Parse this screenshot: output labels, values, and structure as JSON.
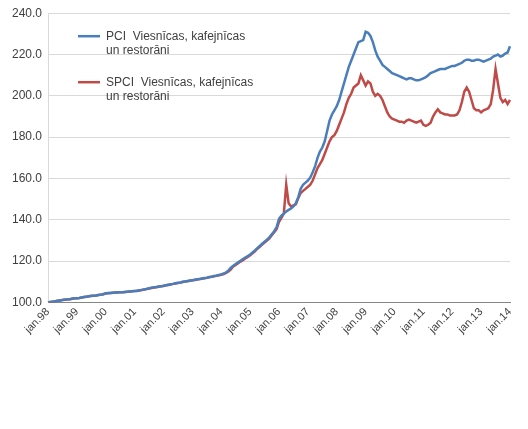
{
  "chart_data": {
    "type": "line",
    "categories": [
      "jan.98",
      null,
      null,
      null,
      null,
      null,
      null,
      null,
      null,
      null,
      null,
      null,
      "jan.99",
      null,
      null,
      null,
      null,
      null,
      null,
      null,
      null,
      null,
      null,
      null,
      "jan.00",
      null,
      null,
      null,
      null,
      null,
      null,
      null,
      null,
      null,
      null,
      null,
      "jan.01",
      null,
      null,
      null,
      null,
      null,
      null,
      null,
      null,
      null,
      null,
      null,
      "jan.02",
      null,
      null,
      null,
      null,
      null,
      null,
      null,
      null,
      null,
      null,
      null,
      "jan.03",
      null,
      null,
      null,
      null,
      null,
      null,
      null,
      null,
      null,
      null,
      null,
      "jan.04",
      null,
      null,
      null,
      null,
      null,
      null,
      null,
      null,
      null,
      null,
      null,
      "jan.05",
      null,
      null,
      null,
      null,
      null,
      null,
      null,
      null,
      null,
      null,
      null,
      "jan.06",
      null,
      null,
      null,
      null,
      null,
      null,
      null,
      null,
      null,
      null,
      null,
      "jan.07",
      null,
      null,
      null,
      null,
      null,
      null,
      null,
      null,
      null,
      null,
      null,
      "jan.08",
      null,
      null,
      null,
      null,
      null,
      null,
      null,
      null,
      null,
      null,
      null,
      "jan.09",
      null,
      null,
      null,
      null,
      null,
      null,
      null,
      null,
      null,
      null,
      null,
      "jan.10",
      null,
      null,
      null,
      null,
      null,
      null,
      null,
      null,
      null,
      null,
      null,
      "jan.11",
      null,
      null,
      null,
      null,
      null,
      null,
      null,
      null,
      null,
      null,
      null,
      "jan.12",
      null,
      null,
      null,
      null,
      null,
      null,
      null,
      null,
      null,
      null,
      null,
      "jan.13",
      null,
      null,
      null,
      null,
      null,
      null,
      null,
      null,
      null,
      null,
      null,
      "jan.14"
    ],
    "series": [
      {
        "name": "PCI  Viesnīcas, kafejnīcas un restorāni",
        "color": "#4a7ebb",
        "values": [
          100.0,
          100.2,
          100.4,
          100.6,
          100.8,
          101.0,
          101.2,
          101.4,
          101.5,
          101.6,
          101.8,
          102.0,
          102.1,
          102.2,
          102.4,
          102.6,
          102.8,
          103.0,
          103.2,
          103.3,
          103.4,
          103.6,
          103.8,
          104.0,
          104.5,
          104.6,
          104.6,
          104.7,
          104.8,
          104.9,
          105.0,
          105.0,
          105.1,
          105.2,
          105.3,
          105.4,
          105.5,
          105.7,
          105.9,
          106.1,
          106.3,
          106.6,
          106.9,
          107.1,
          107.3,
          107.5,
          107.7,
          107.9,
          108.1,
          108.3,
          108.6,
          108.8,
          109.0,
          109.3,
          109.5,
          109.7,
          110.0,
          110.2,
          110.4,
          110.6,
          110.8,
          111.0,
          111.2,
          111.4,
          111.6,
          111.8,
          112.0,
          112.3,
          112.5,
          112.8,
          113.0,
          113.3,
          113.6,
          114.0,
          114.5,
          115.5,
          116.8,
          117.8,
          118.6,
          119.4,
          120.2,
          121.0,
          121.8,
          122.5,
          123.2,
          124.2,
          125.2,
          126.3,
          127.4,
          128.4,
          129.4,
          130.4,
          131.5,
          133.0,
          134.5,
          136.5,
          140.5,
          142.0,
          143.0,
          144.0,
          144.8,
          145.5,
          146.5,
          148.0,
          151.0,
          155.0,
          157.0,
          158.0,
          159.0,
          160.5,
          163.0,
          166.0,
          170.0,
          173.0,
          175.0,
          178.0,
          183.0,
          188.0,
          191.0,
          193.0,
          195.0,
          198.0,
          202.0,
          206.0,
          210.0,
          214.0,
          217.0,
          220.0,
          223.0,
          226.0,
          226.5,
          227.0,
          231.0,
          230.5,
          229.0,
          226.0,
          222.0,
          219.0,
          217.0,
          215.0,
          214.0,
          213.0,
          212.0,
          211.0,
          210.5,
          210.0,
          209.5,
          209.0,
          208.5,
          208.0,
          208.5,
          208.5,
          208.0,
          207.5,
          207.5,
          208.0,
          208.5,
          209.0,
          210.0,
          211.0,
          211.5,
          212.0,
          212.5,
          213.0,
          213.0,
          213.0,
          213.5,
          214.0,
          214.5,
          214.5,
          215.0,
          215.5,
          216.0,
          217.0,
          217.5,
          217.5,
          217.0,
          217.0,
          217.5,
          217.5,
          217.0,
          216.5,
          217.0,
          217.5,
          218.0,
          219.0,
          219.5,
          220.0,
          219.0,
          219.5,
          220.5,
          221.0,
          224.0
        ]
      },
      {
        "name": "SPCI  Viesnīcas, kafejnīcas un restorāni",
        "color": "#be4b48",
        "values": [
          100.0,
          100.2,
          100.4,
          100.6,
          100.8,
          101.0,
          101.2,
          101.3,
          101.4,
          101.6,
          101.8,
          102.0,
          102.1,
          102.2,
          102.4,
          102.6,
          102.8,
          103.0,
          103.1,
          103.2,
          103.4,
          103.6,
          103.8,
          104.0,
          104.4,
          104.5,
          104.6,
          104.7,
          104.8,
          104.8,
          104.9,
          105.0,
          105.1,
          105.2,
          105.3,
          105.4,
          105.5,
          105.6,
          105.8,
          106.0,
          106.3,
          106.5,
          106.8,
          107.0,
          107.2,
          107.4,
          107.6,
          107.8,
          108.0,
          108.3,
          108.5,
          108.7,
          109.0,
          109.2,
          109.4,
          109.6,
          109.9,
          110.1,
          110.3,
          110.5,
          110.7,
          110.9,
          111.1,
          111.3,
          111.5,
          111.7,
          111.9,
          112.2,
          112.4,
          112.7,
          112.9,
          113.2,
          113.4,
          113.8,
          114.3,
          115.0,
          116.0,
          117.5,
          118.2,
          119.0,
          119.8,
          120.5,
          121.3,
          122.0,
          122.8,
          123.8,
          124.8,
          126.0,
          127.0,
          128.0,
          129.0,
          130.0,
          131.0,
          132.5,
          134.0,
          135.5,
          139.0,
          141.0,
          143.0,
          157.0,
          148.0,
          146.5,
          147.0,
          147.5,
          150.5,
          153.0,
          154.0,
          155.0,
          156.0,
          157.0,
          159.0,
          162.0,
          165.0,
          167.0,
          169.0,
          172.0,
          175.0,
          178.0,
          180.0,
          181.0,
          183.0,
          186.0,
          189.0,
          192.0,
          196.0,
          199.0,
          201.0,
          204.0,
          205.0,
          206.0,
          210.0,
          207.5,
          205.0,
          207.0,
          206.0,
          202.0,
          200.0,
          201.0,
          200.0,
          198.0,
          195.0,
          192.0,
          190.0,
          189.0,
          188.5,
          188.0,
          187.5,
          187.5,
          187.0,
          188.0,
          188.5,
          188.0,
          187.5,
          187.0,
          187.5,
          188.0,
          186.0,
          185.5,
          186.0,
          187.0,
          190.0,
          192.0,
          193.5,
          192.0,
          191.5,
          191.0,
          191.0,
          190.5,
          190.5,
          190.5,
          191.0,
          193.0,
          197.0,
          202.0,
          204.0,
          202.0,
          198.0,
          194.0,
          193.0,
          193.0,
          192.0,
          193.0,
          193.5,
          194.0,
          196.0,
          203.0,
          213.0,
          206.0,
          199.0,
          197.0,
          198.0,
          196.0,
          198.0
        ]
      }
    ],
    "ylim": [
      100,
      240
    ],
    "yticks": [
      {
        "value": 100,
        "label": "100.0"
      },
      {
        "value": 120,
        "label": "120.0"
      },
      {
        "value": 140,
        "label": "140.0"
      },
      {
        "value": 160,
        "label": "160.0"
      },
      {
        "value": 180,
        "label": "180.0"
      },
      {
        "value": 200,
        "label": "200.0"
      },
      {
        "value": 220,
        "label": "220.0"
      },
      {
        "value": 240,
        "label": "240.0"
      }
    ],
    "grid": true,
    "legend": "upper left"
  }
}
